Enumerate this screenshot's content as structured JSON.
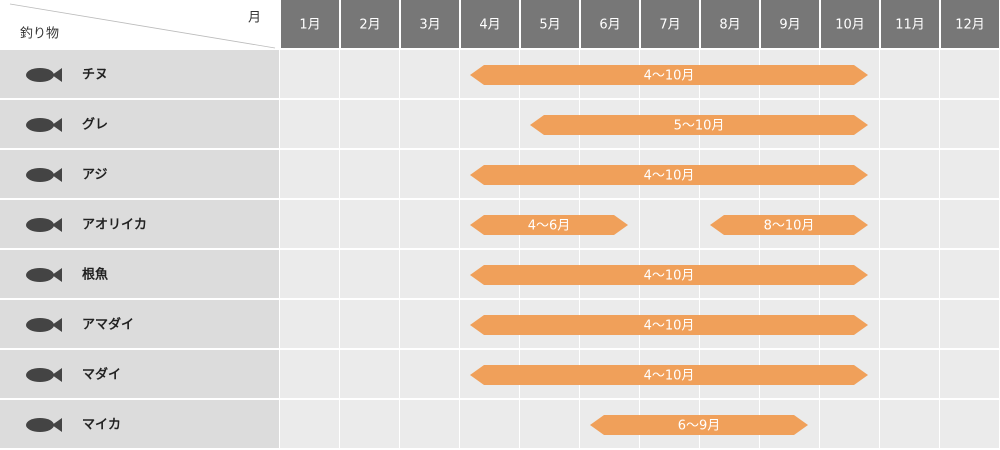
{
  "header": {
    "month_label": "月",
    "target_label": "釣り物",
    "months": [
      "1月",
      "2月",
      "3月",
      "4月",
      "5月",
      "6月",
      "7月",
      "8月",
      "9月",
      "10月",
      "11月",
      "12月"
    ]
  },
  "rows": [
    {
      "name": "チヌ",
      "seasons": [
        {
          "label": "4～10月",
          "start": 4,
          "end": 10
        }
      ]
    },
    {
      "name": "グレ",
      "seasons": [
        {
          "label": "5～10月",
          "start": 5,
          "end": 10
        }
      ]
    },
    {
      "name": "アジ",
      "seasons": [
        {
          "label": "4～10月",
          "start": 4,
          "end": 10
        }
      ]
    },
    {
      "name": "アオリイカ",
      "seasons": [
        {
          "label": "4～6月",
          "start": 4,
          "end": 6
        },
        {
          "label": "8～10月",
          "start": 8,
          "end": 10
        }
      ]
    },
    {
      "name": "根魚",
      "seasons": [
        {
          "label": "4～10月",
          "start": 4,
          "end": 10
        }
      ]
    },
    {
      "name": "アマダイ",
      "seasons": [
        {
          "label": "4～10月",
          "start": 4,
          "end": 10
        }
      ]
    },
    {
      "name": "マダイ",
      "seasons": [
        {
          "label": "4～10月",
          "start": 4,
          "end": 10
        }
      ]
    },
    {
      "name": "マイカ",
      "seasons": [
        {
          "label": "6～9月",
          "start": 6,
          "end": 9
        }
      ]
    }
  ]
}
